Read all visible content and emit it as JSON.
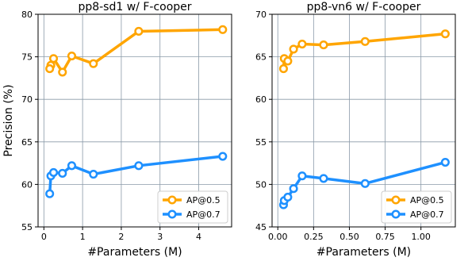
{
  "chart_data": [
    {
      "type": "line",
      "title": "pp8-sd1 w/ F-cooper",
      "xlabel": "#Parameters (M)",
      "ylabel": "Precision (%)",
      "xlim": [
        -0.15,
        4.85
      ],
      "ylim": [
        55,
        80
      ],
      "xticks": [
        0,
        1,
        2,
        3,
        4
      ],
      "xtick_labels": [
        "0",
        "1",
        "2",
        "3",
        "4"
      ],
      "yticks": [
        55,
        60,
        65,
        70,
        75,
        80
      ],
      "ytick_labels": [
        "55",
        "60",
        "65",
        "70",
        "75",
        "80"
      ],
      "grid": true,
      "legend_position": "lower-right",
      "series": [
        {
          "name": "AP@0.5",
          "color": "#FFA500",
          "x": [
            0.18,
            0.15,
            0.25,
            0.48,
            0.72,
            1.28,
            2.45,
            4.62
          ],
          "y": [
            74.0,
            73.6,
            74.8,
            73.2,
            75.1,
            74.2,
            78.0,
            78.2
          ]
        },
        {
          "name": "AP@0.7",
          "color": "#1E90FF",
          "x": [
            0.15,
            0.18,
            0.25,
            0.48,
            0.72,
            1.28,
            2.45,
            4.62
          ],
          "y": [
            58.9,
            61.0,
            61.4,
            61.3,
            62.2,
            61.2,
            62.2,
            63.3
          ]
        }
      ]
    },
    {
      "type": "line",
      "title": "pp8-vn6 w/ F-cooper",
      "xlabel": "#Parameters (M)",
      "ylabel": "",
      "xlim": [
        -0.04,
        1.24
      ],
      "ylim": [
        45,
        70
      ],
      "xticks": [
        0.0,
        0.25,
        0.5,
        0.75,
        1.0
      ],
      "xtick_labels": [
        "0.00",
        "0.25",
        "0.50",
        "0.75",
        "1.00"
      ],
      "yticks": [
        45,
        50,
        55,
        60,
        65,
        70
      ],
      "ytick_labels": [
        "45",
        "50",
        "55",
        "60",
        "65",
        "70"
      ],
      "grid": true,
      "legend_position": "lower-right",
      "series": [
        {
          "name": "AP@0.5",
          "color": "#FFA500",
          "x": [
            0.04,
            0.045,
            0.07,
            0.11,
            0.17,
            0.32,
            0.61,
            1.17
          ],
          "y": [
            63.6,
            64.8,
            64.5,
            65.9,
            66.5,
            66.4,
            66.8,
            67.7
          ]
        },
        {
          "name": "AP@0.7",
          "color": "#1E90FF",
          "x": [
            0.04,
            0.045,
            0.07,
            0.11,
            0.17,
            0.32,
            0.61,
            1.17
          ],
          "y": [
            47.6,
            48.1,
            48.5,
            49.5,
            51.0,
            50.7,
            50.1,
            52.6
          ]
        }
      ]
    }
  ]
}
